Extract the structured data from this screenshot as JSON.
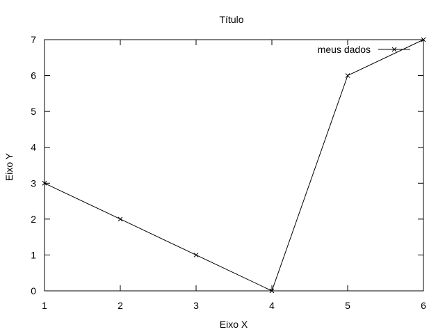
{
  "chart_data": {
    "type": "line",
    "title": "Título",
    "xlabel": "Eixo X",
    "ylabel": "Eixo Y",
    "xlim": [
      1,
      6
    ],
    "ylim": [
      0,
      7
    ],
    "xticks": [
      1,
      2,
      3,
      4,
      5,
      6
    ],
    "yticks": [
      0,
      1,
      2,
      3,
      4,
      5,
      6,
      7
    ],
    "grid": false,
    "legend_position": "top-right",
    "series": [
      {
        "name": "meus dados",
        "marker": "x",
        "color": "#000000",
        "x": [
          1,
          2,
          3,
          4,
          5,
          6
        ],
        "y": [
          3,
          2,
          1,
          0,
          6,
          7
        ]
      }
    ]
  }
}
